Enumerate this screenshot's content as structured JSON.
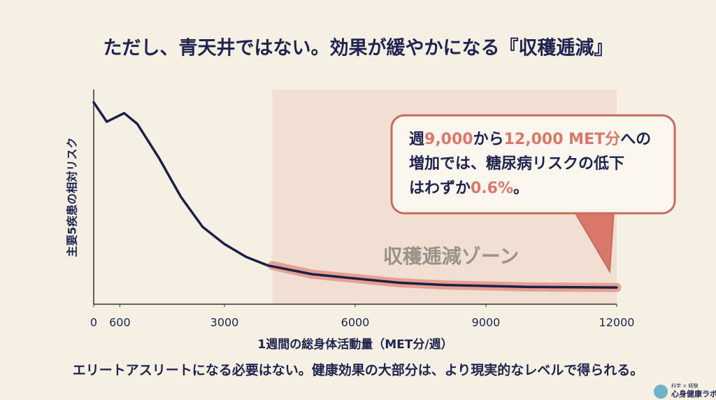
{
  "chart_data": {
    "type": "line",
    "title": "ただし、青天井ではない。効果が緩やかになる『収穫逓減』",
    "x_label": "1週間の総身体活動量（MET分/週）",
    "y_label": "主要5疾患の相対リスク",
    "x": [
      0,
      300,
      700,
      1000,
      1500,
      2000,
      2500,
      3000,
      3500,
      4000,
      5000,
      6000,
      7000,
      8000,
      9000,
      10000,
      12000
    ],
    "series": [
      {
        "color": "#1b2048",
        "values": [
          0.94,
          0.85,
          0.89,
          0.84,
          0.68,
          0.5,
          0.36,
          0.28,
          0.22,
          0.18,
          0.14,
          0.12,
          0.1,
          0.09,
          0.085,
          0.08,
          0.078
        ]
      }
    ],
    "xlim": [
      0,
      12000
    ],
    "ylim": [
      0,
      1
    ],
    "xticks": [
      0,
      600,
      3000,
      6000,
      9000,
      12000
    ],
    "zone": {
      "start": 4100,
      "end": 12000,
      "label": "収穫逓減ゾーン",
      "color": "#f1dfd3",
      "highlight_color": "#e08a7c"
    },
    "callout": {
      "highlight_color": "#d9786a",
      "lines": [
        [
          {
            "text": "週"
          },
          {
            "text": "9,000",
            "highlight": true
          },
          {
            "text": "から"
          },
          {
            "text": "12,000 MET分",
            "highlight": true
          },
          {
            "text": "への"
          }
        ],
        [
          {
            "text": "増加では、糖尿病リスクの低下"
          }
        ],
        [
          {
            "text": "はわずか"
          },
          {
            "text": "0.6%",
            "highlight": true
          },
          {
            "text": "。"
          }
        ]
      ]
    }
  },
  "footer": "エリートアスリートになる必要はない。健康効果の大部分は、より現実的なレベルで得られる。",
  "logo": {
    "tagline": "科学 × 経験",
    "name": "心身健康ラボ"
  }
}
